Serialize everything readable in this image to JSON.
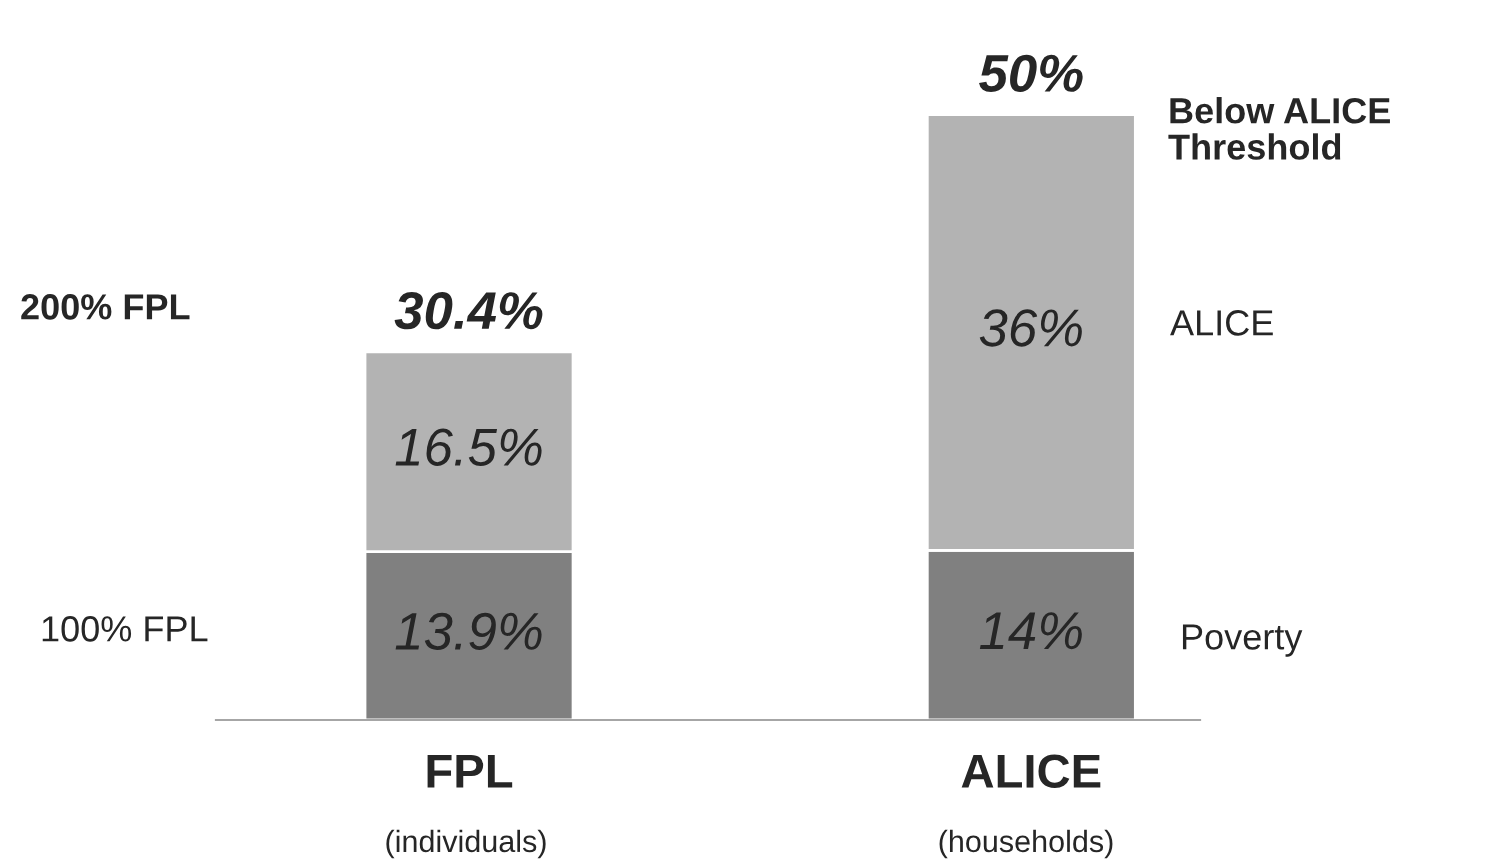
{
  "chart_data": {
    "type": "bar",
    "stacked": true,
    "categories": [
      "FPL",
      "ALICE"
    ],
    "series": [
      {
        "color": "#808080",
        "values": [
          13.9,
          14
        ],
        "value_labels": [
          "13.9%",
          "14%"
        ]
      },
      {
        "color": "#b3b3b3",
        "values": [
          16.5,
          36
        ],
        "value_labels": [
          "16.5%",
          "36%"
        ]
      }
    ],
    "totals": [
      "30.4%",
      "50%"
    ],
    "relative": false,
    "annotations": [
      "(individuals)",
      "(households)",
      "200% FPL",
      "100% FPL",
      "Below ALICE\nThreshold",
      "ALICE",
      "Poverty"
    ]
  }
}
